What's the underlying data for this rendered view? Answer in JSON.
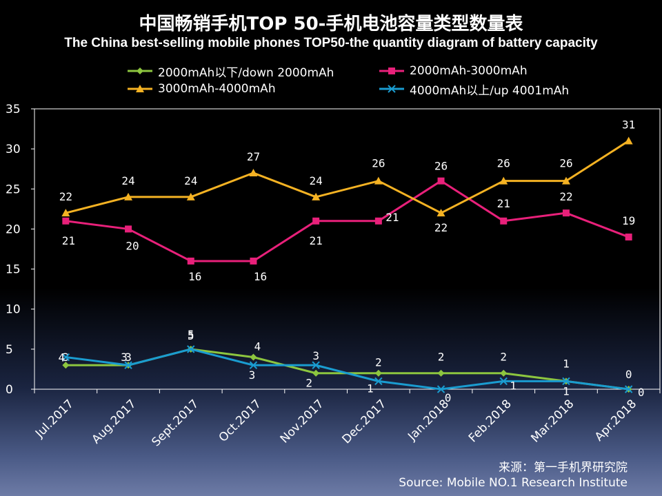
{
  "title_cn": "中国畅销手机TOP 50-手机电池容量类型数量表",
  "title_en": "The China best-selling mobile phones TOP50-the quantity diagram of battery capacity",
  "source_cn": "来源：第一手机界研究院",
  "source_en": "Source: Mobile NO.1 Research Institute",
  "colors": {
    "green": "#8dc63f",
    "pink": "#e8207a",
    "orange": "#f4b223",
    "blue": "#1a9cd0"
  },
  "chart_data": {
    "type": "line",
    "categories": [
      "Jul.2017",
      "Aug.2017",
      "Sept.2017",
      "Oct.2017",
      "Nov.2017",
      "Dec.2017",
      "Jan.2018",
      "Feb.2018",
      "Mar.2018",
      "Apr.2018"
    ],
    "ylim": [
      0,
      35
    ],
    "yticks": [
      0,
      5,
      10,
      15,
      20,
      25,
      30,
      35
    ],
    "grid": false,
    "legend_position": "top",
    "series": [
      {
        "name": "2000mAh以下/down 2000mAh",
        "color": "#8dc63f",
        "marker": "diamond",
        "values": [
          3,
          3,
          5,
          4,
          2,
          2,
          2,
          2,
          1,
          0
        ]
      },
      {
        "name": "2000mAh-3000mAh",
        "color": "#e8207a",
        "marker": "square",
        "values": [
          21,
          20,
          16,
          16,
          21,
          21,
          26,
          21,
          22,
          19
        ]
      },
      {
        "name": "3000mAh-4000mAh",
        "color": "#f4b223",
        "marker": "triangle",
        "values": [
          22,
          24,
          24,
          27,
          24,
          26,
          22,
          26,
          26,
          31
        ]
      },
      {
        "name": "4000mAh以上/up 4001mAh",
        "color": "#1a9cd0",
        "marker": "x",
        "values": [
          4,
          3,
          5,
          3,
          3,
          1,
          0,
          1,
          1,
          0
        ]
      }
    ]
  }
}
